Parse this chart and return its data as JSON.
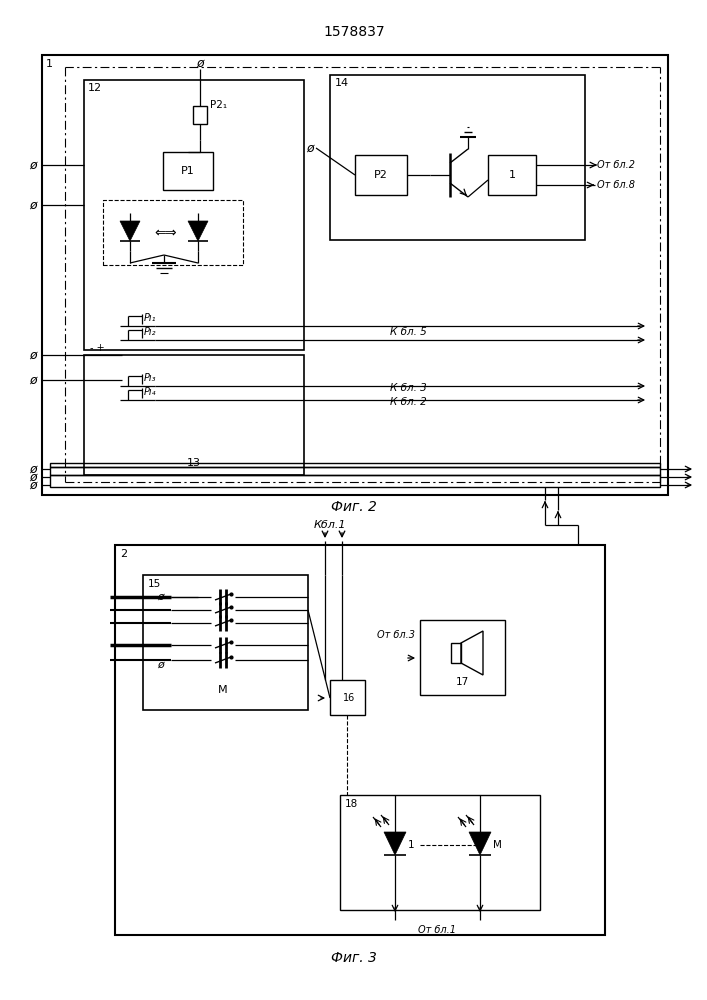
{
  "title": "1578837",
  "fig1_label": "Фиг. 2",
  "fig2_label": "Фиг. 3",
  "bg_color": "#ffffff",
  "line_color": "#000000"
}
